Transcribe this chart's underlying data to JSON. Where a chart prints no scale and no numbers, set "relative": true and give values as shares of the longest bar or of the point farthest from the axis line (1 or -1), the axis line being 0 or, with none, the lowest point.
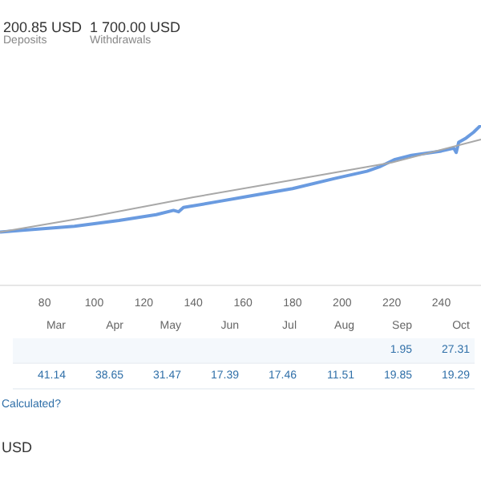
{
  "chart_data": [
    {
      "type": "line",
      "relative": true,
      "annotations": [
        "200.85 USD",
        "Deposits",
        "1 700.00 USD",
        "Withdrawals"
      ],
      "xlim": [
        62,
        256
      ],
      "xticks": [
        80,
        100,
        120,
        140,
        160,
        180,
        200,
        220,
        240
      ],
      "legend": false,
      "marker": "none",
      "line_style": "solid",
      "series": [
        {
          "color": "#6a9be0",
          "x": [
            62,
            70,
            92,
            110,
            125,
            132,
            134,
            136,
            150,
            160,
            180,
            197,
            210,
            215,
            221,
            228,
            240,
            245,
            246,
            247,
            250,
            253,
            256
          ],
          "values": [
            0.333,
            0.343,
            0.369,
            0.405,
            0.441,
            0.468,
            0.459,
            0.486,
            0.523,
            0.55,
            0.604,
            0.667,
            0.712,
            0.739,
            0.784,
            0.811,
            0.838,
            0.856,
            0.829,
            0.892,
            0.919,
            0.955,
            1.0
          ]
        },
        {
          "color": "#a8a8a8",
          "x": [
            62,
            100,
            140,
            180,
            220,
            256
          ],
          "values": [
            0.333,
            0.432,
            0.55,
            0.658,
            0.766,
            0.91
          ]
        }
      ]
    },
    {
      "type": "other",
      "categories": [
        "Mar",
        "Apr",
        "May",
        "Jun",
        "Jul",
        "Aug",
        "Sep",
        "Oct"
      ],
      "data_labels": true,
      "annotations": [
        "Calculated?",
        "USD"
      ],
      "series": [
        {
          "values": [
            null,
            null,
            null,
            null,
            null,
            null,
            1.95,
            27.31
          ]
        },
        {
          "values": [
            41.14,
            38.65,
            31.47,
            17.39,
            17.46,
            11.51,
            19.85,
            19.29
          ]
        }
      ]
    }
  ]
}
